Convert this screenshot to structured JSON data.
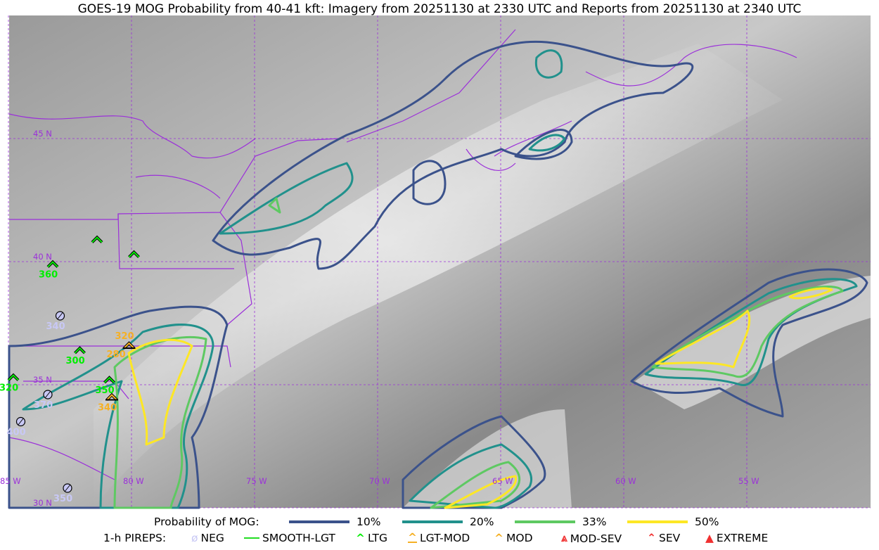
{
  "title": "GOES-19 MOG Probability from 40-41 kft: Imagery from 20251130 at 2330 UTC and Reports from 20251130 at 2340 UTC",
  "map": {
    "lon_range": [
      -85,
      -50
    ],
    "lat_range": [
      30,
      50
    ],
    "lat_labels": [
      "45 N",
      "40 N",
      "35 N",
      "30 N"
    ],
    "lon_labels": [
      "85 W",
      "80 W",
      "75 W",
      "70 W",
      "65 W",
      "60 W",
      "55 W"
    ],
    "colors": {
      "border": "#9b30d9",
      "grid": "#9b30d9",
      "p10": "#3b528b",
      "p20": "#21918c",
      "p33": "#5ec962",
      "p50": "#fde725"
    }
  },
  "pireps": [
    {
      "type": "LTG",
      "lon": -81.4,
      "lat": 40.9,
      "alt": ""
    },
    {
      "type": "LTG",
      "lon": -79.9,
      "lat": 40.3,
      "alt": ""
    },
    {
      "type": "LTG",
      "lon": -83.2,
      "lat": 39.9,
      "alt": "360"
    },
    {
      "type": "NEG",
      "lon": -82.9,
      "lat": 37.8,
      "alt": "340"
    },
    {
      "type": "MOD",
      "lon": -80.1,
      "lat": 36.6,
      "alt": "320",
      "alt2": "280"
    },
    {
      "type": "LTG",
      "lon": -82.1,
      "lat": 36.4,
      "alt": "300"
    },
    {
      "type": "LTG",
      "lon": -84.8,
      "lat": 35.3,
      "alt": "320"
    },
    {
      "type": "LTG",
      "lon": -80.9,
      "lat": 35.2,
      "alt": "350"
    },
    {
      "type": "MOD",
      "lon": -80.8,
      "lat": 34.5,
      "alt": "340"
    },
    {
      "type": "NEG",
      "lon": -83.4,
      "lat": 34.6,
      "alt": "370"
    },
    {
      "type": "NEG",
      "lon": -84.5,
      "lat": 33.5,
      "alt": "400"
    },
    {
      "type": "NEG",
      "lon": -82.6,
      "lat": 30.8,
      "alt": "350"
    }
  ],
  "legend": {
    "prob_label": "Probability of MOG:",
    "prob_items": [
      {
        "label": "10%",
        "color": "#3b528b"
      },
      {
        "label": "20%",
        "color": "#21918c"
      },
      {
        "label": "33%",
        "color": "#5ec962"
      },
      {
        "label": "50%",
        "color": "#fde725"
      }
    ],
    "pirep_label": "1-h PIREPS:",
    "pirep_items": [
      {
        "label": "NEG",
        "icon": "null-circle-icon",
        "color": "#c8c8f5"
      },
      {
        "label": "SMOOTH-LGT",
        "icon": "line-icon",
        "color": "#22dd22"
      },
      {
        "label": "LTG",
        "icon": "caret-icon",
        "color": "#00ee00"
      },
      {
        "label": "LGT-MOD",
        "icon": "caret-bar-icon",
        "color": "#f5b025"
      },
      {
        "label": "MOD",
        "icon": "caret-icon",
        "color": "#f5b025"
      },
      {
        "label": "MOD-SEV",
        "icon": "double-caret-bar-icon",
        "color": "#f03030"
      },
      {
        "label": "SEV",
        "icon": "double-caret-icon",
        "color": "#f03030"
      },
      {
        "label": "EXTREME",
        "icon": "filled-triangle-icon",
        "color": "#f03030"
      }
    ]
  }
}
